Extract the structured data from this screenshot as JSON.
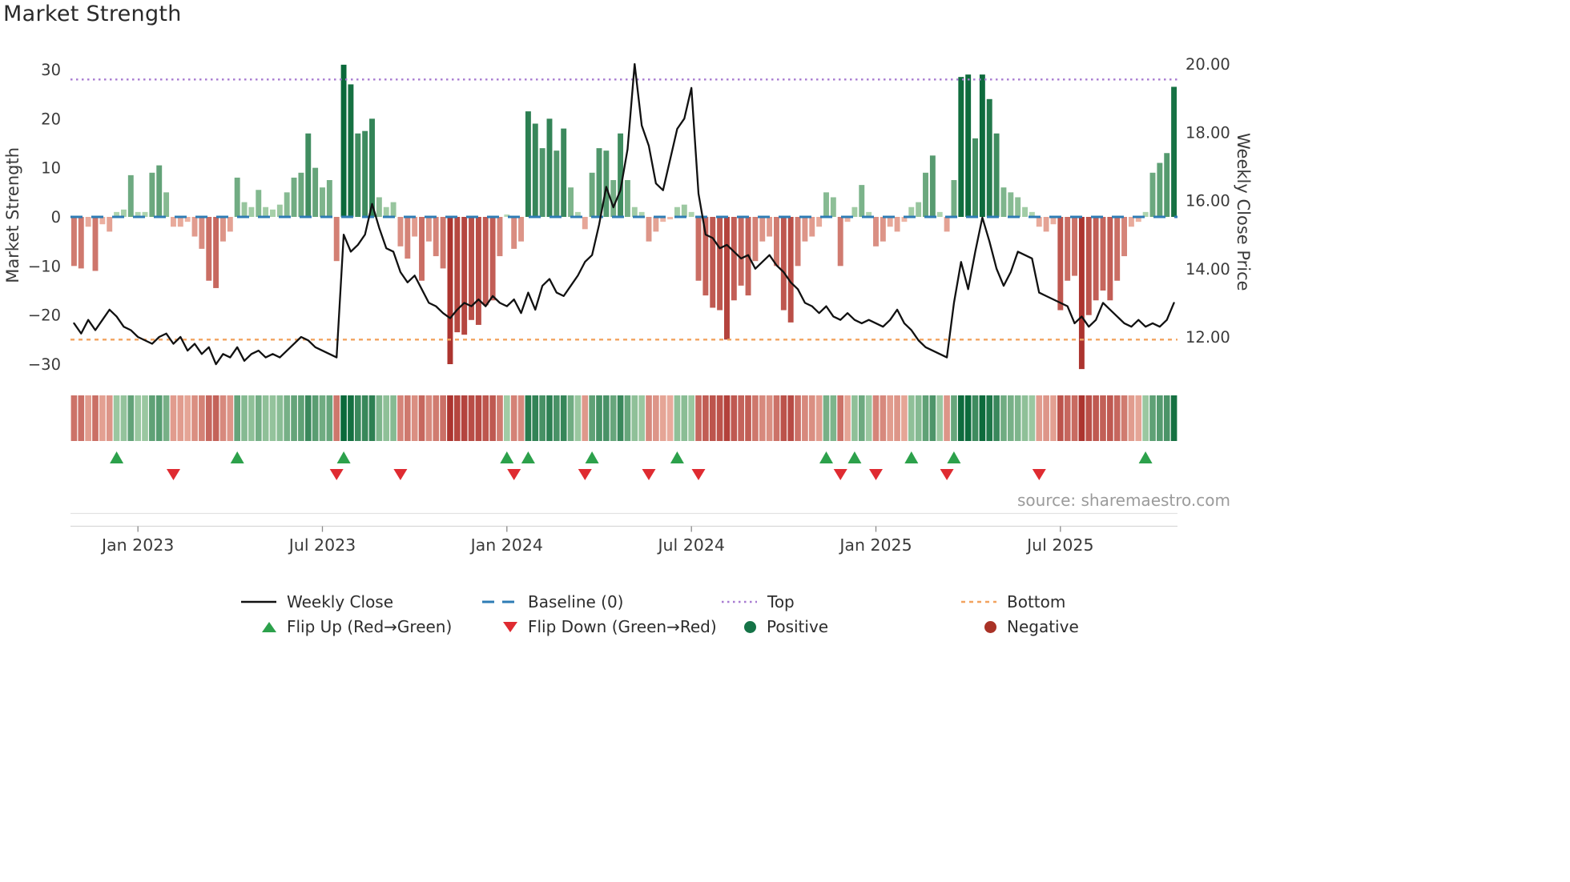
{
  "title": "Market Strength",
  "source": "source: sharemaestro.com",
  "axes": {
    "left_label": "Market Strength",
    "right_label": "Weekly Close Price"
  },
  "legend": {
    "weekly_close": "Weekly Close",
    "baseline": "Baseline (0)",
    "top": "Top",
    "bottom": "Bottom",
    "flip_up": "Flip Up (Red→Green)",
    "flip_down": "Flip Down (Green→Red)",
    "positive": "Positive",
    "negative": "Negative"
  },
  "colors": {
    "positive_dark": "#0a693a",
    "positive_light": "#c6e4bf",
    "negative_dark": "#ac342f",
    "negative_light": "#f7c7b6",
    "line": "#111111",
    "baseline": "#2e7cb5",
    "top": "#a87bd1",
    "bottom": "#f2a25f",
    "flip_up": "#2ca14b",
    "flip_down": "#df2b31",
    "positive_dot": "#157347",
    "negative_dot": "#a93226",
    "tick_text": "#3a3a3a",
    "grid_line": "#e2e2e2"
  },
  "chart_data": {
    "type": "bar",
    "note": "Weekly bars (Market Strength, left axis) with Weekly Close price line (right axis); heatmap strip and flip markers derived from bar sign/magnitude.",
    "weeks": 156,
    "x_tick_weeks": [
      9,
      35,
      61,
      87,
      113,
      139
    ],
    "x_tick_labels": [
      "Jan 2023",
      "Jul 2023",
      "Jan 2024",
      "Jul 2024",
      "Jan 2025",
      "Jul 2025"
    ],
    "left_axis": {
      "label": "Market Strength",
      "ticks": [
        30,
        20,
        10,
        0,
        -10,
        -20,
        -30
      ],
      "tick_labels": [
        "30",
        "20",
        "10",
        "0",
        "−10",
        "−20",
        "−30"
      ],
      "range": [
        -33,
        33
      ]
    },
    "right_axis": {
      "label": "Weekly Close Price",
      "ticks": [
        20,
        18,
        16,
        14,
        12
      ],
      "tick_labels": [
        "20.00",
        "18.00",
        "16.00",
        "14.00",
        "12.00"
      ],
      "range": [
        11.0,
        20.2
      ]
    },
    "baseline": 0,
    "top_level": 28,
    "bottom_level": -25,
    "series": [
      {
        "name": "Market Strength",
        "type": "bar",
        "axis": "left",
        "values": [
          -10,
          -10.5,
          -2,
          -11,
          -1.5,
          -3,
          1,
          1.5,
          8.5,
          1,
          1,
          9,
          10.5,
          5,
          -2,
          -2,
          -1,
          -4,
          -6.5,
          -13,
          -14.5,
          -5,
          -3,
          8,
          3,
          2,
          5.5,
          2,
          1.5,
          2.5,
          5,
          8,
          9,
          17,
          10,
          6,
          7.5,
          -9,
          31,
          27,
          17,
          17.5,
          20,
          4,
          2,
          3,
          -6,
          -8.5,
          -4,
          -13,
          -5,
          -8,
          -10.5,
          -30,
          -23.5,
          -24,
          -21,
          -22,
          -18,
          -17,
          -8,
          0.5,
          -6.5,
          -5,
          21.5,
          19,
          14,
          20,
          13.5,
          18,
          6,
          1,
          -2.5,
          9,
          14,
          13.5,
          7.5,
          17,
          7.5,
          2,
          1,
          -5,
          -3,
          -1,
          -0.5,
          2,
          2.5,
          1,
          -13,
          -16,
          -18.5,
          -19,
          -25,
          -17,
          -14,
          -16,
          -9,
          -5,
          -4,
          -10,
          -19,
          -21.5,
          -10,
          -5,
          -4,
          -2,
          5,
          4,
          -10,
          -1,
          2,
          6.5,
          1,
          -6,
          -5,
          -2,
          -3,
          -1,
          2,
          3,
          9,
          12.5,
          1,
          -3,
          7.5,
          28.5,
          29,
          16,
          29,
          24,
          17,
          6,
          5,
          4,
          2,
          1,
          -2,
          -3,
          -1.5,
          -19,
          -13,
          -12,
          -31,
          -20,
          -17,
          -15,
          -17,
          -13,
          -8,
          -2,
          -1,
          1,
          9,
          11,
          13,
          26.5
        ]
      },
      {
        "name": "Weekly Close",
        "type": "line",
        "axis": "right",
        "values": [
          12.4,
          12.1,
          12.5,
          12.2,
          12.5,
          12.8,
          12.6,
          12.3,
          12.2,
          12.0,
          11.9,
          11.8,
          12.0,
          12.1,
          11.8,
          12.0,
          11.6,
          11.8,
          11.5,
          11.7,
          11.2,
          11.5,
          11.4,
          11.7,
          11.3,
          11.5,
          11.6,
          11.4,
          11.5,
          11.4,
          11.6,
          11.8,
          12.0,
          11.9,
          11.7,
          11.6,
          11.5,
          11.4,
          15.0,
          14.5,
          14.7,
          15.0,
          15.9,
          15.2,
          14.6,
          14.5,
          13.9,
          13.6,
          13.8,
          13.4,
          13.0,
          12.9,
          12.7,
          12.55,
          12.8,
          13.0,
          12.9,
          13.1,
          12.9,
          13.2,
          13.0,
          12.9,
          13.1,
          12.7,
          13.3,
          12.8,
          13.5,
          13.7,
          13.3,
          13.2,
          13.5,
          13.8,
          14.2,
          14.4,
          15.3,
          16.4,
          15.8,
          16.3,
          17.5,
          20.0,
          18.2,
          17.6,
          16.5,
          16.3,
          17.2,
          18.1,
          18.4,
          19.3,
          16.2,
          15.0,
          14.9,
          14.6,
          14.7,
          14.5,
          14.3,
          14.4,
          14.0,
          14.2,
          14.4,
          14.1,
          13.9,
          13.6,
          13.4,
          13.0,
          12.9,
          12.7,
          12.9,
          12.6,
          12.5,
          12.7,
          12.5,
          12.4,
          12.5,
          12.4,
          12.3,
          12.5,
          12.8,
          12.4,
          12.2,
          11.9,
          11.7,
          11.6,
          11.5,
          11.4,
          13.0,
          14.2,
          13.4,
          14.5,
          15.5,
          14.8,
          14.0,
          13.5,
          13.9,
          14.5,
          14.4,
          14.3,
          13.3,
          13.2,
          13.1,
          13.0,
          12.9,
          12.4,
          12.6,
          12.3,
          12.5,
          13.0,
          12.8,
          12.6,
          12.4,
          12.3,
          12.5,
          12.3,
          12.4,
          12.3,
          12.5,
          13.0
        ]
      }
    ],
    "flip_up_weeks": [
      6,
      23,
      38,
      61,
      64,
      73,
      85,
      106,
      110,
      118,
      124,
      151
    ],
    "flip_down_weeks": [
      14,
      37,
      46,
      62,
      72,
      81,
      88,
      108,
      113,
      123,
      136
    ],
    "heatmap": "color strip derived from Market Strength values (red negative, green positive, intensity by magnitude)"
  }
}
